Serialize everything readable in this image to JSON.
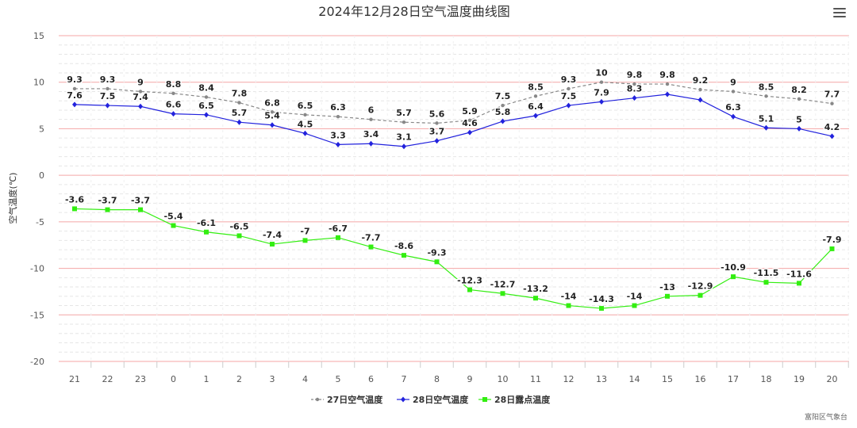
{
  "chart_data": {
    "type": "line",
    "title": "2024年12月28日空气温度曲线图",
    "xlabel": "",
    "ylabel": "空气温度(℃)",
    "ylim": [
      -20,
      15
    ],
    "yticks": [
      15,
      10,
      5,
      0,
      -5,
      -10,
      -15,
      -20
    ],
    "categories": [
      "21",
      "22",
      "23",
      "0",
      "1",
      "2",
      "3",
      "4",
      "5",
      "6",
      "7",
      "8",
      "9",
      "10",
      "11",
      "12",
      "13",
      "14",
      "15",
      "16",
      "17",
      "18",
      "19",
      "20"
    ],
    "series": [
      {
        "name": "27日空气温度",
        "color": "#888888",
        "dash": true,
        "marker": "circle",
        "values": [
          9.3,
          9.3,
          9,
          8.8,
          8.4,
          7.8,
          6.8,
          6.5,
          6.3,
          6,
          5.7,
          5.6,
          5.9,
          7.5,
          8.5,
          9.3,
          10,
          9.8,
          9.8,
          9.2,
          9,
          8.5,
          8.2,
          7.7
        ]
      },
      {
        "name": "28日空气温度",
        "color": "#2222dd",
        "dash": false,
        "marker": "diamond",
        "values": [
          7.6,
          7.5,
          7.4,
          6.6,
          6.5,
          5.7,
          5.4,
          4.5,
          3.3,
          3.4,
          3.1,
          3.7,
          4.6,
          5.8,
          6.4,
          7.5,
          7.9,
          8.3,
          8.7,
          8.1,
          6.3,
          5.1,
          5,
          4.2
        ]
      },
      {
        "name": "28日露点温度",
        "color": "#33ee11",
        "dash": false,
        "marker": "square",
        "values": [
          -3.6,
          -3.7,
          -3.7,
          -5.4,
          -6.1,
          -6.5,
          -7.4,
          -7,
          -6.7,
          -7.7,
          -8.6,
          -9.3,
          -12.3,
          -12.7,
          -13.2,
          -14,
          -14.3,
          -14,
          -13,
          -12.9,
          -10.9,
          -11.5,
          -11.6,
          -7.9
        ]
      }
    ],
    "labeled_points": {
      "0": [
        true,
        true,
        true,
        true,
        true,
        true,
        true,
        true,
        true,
        true,
        true,
        true,
        true,
        true,
        true,
        true,
        true,
        true,
        true,
        true,
        true,
        true,
        true,
        true
      ],
      "1": [
        true,
        true,
        true,
        true,
        true,
        true,
        true,
        true,
        true,
        true,
        true,
        true,
        true,
        true,
        true,
        true,
        true,
        true,
        false,
        false,
        true,
        true,
        true,
        true
      ],
      "2": [
        true,
        true,
        true,
        true,
        true,
        true,
        true,
        true,
        true,
        true,
        true,
        true,
        true,
        true,
        true,
        true,
        true,
        true,
        true,
        true,
        true,
        true,
        true,
        true
      ]
    },
    "legend_position": "bottom-center"
  },
  "credits": "富阳区气象台",
  "menu_icon": "hamburger-menu-icon"
}
